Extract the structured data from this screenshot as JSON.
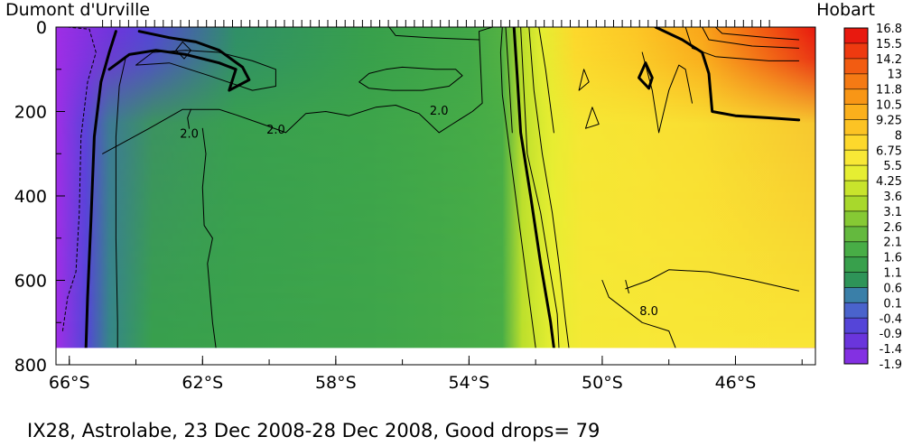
{
  "chart_data": {
    "type": "heatmap",
    "top_left_label": "Dumont d'Urville",
    "top_right_label": "Hobart",
    "caption": "IX28, Astrolabe, 23 Dec 2008-28 Dec 2008, Good drops= 79",
    "x_range": [
      66.4,
      43.6
    ],
    "y_range": [
      0,
      800
    ],
    "data_depth_max": 760,
    "x_ticks": [
      {
        "value": 66,
        "label": "66°S"
      },
      {
        "value": 62,
        "label": "62°S"
      },
      {
        "value": 58,
        "label": "58°S"
      },
      {
        "value": 54,
        "label": "54°S"
      },
      {
        "value": 50,
        "label": "50°S"
      },
      {
        "value": 46,
        "label": "46°S"
      }
    ],
    "y_ticks": [
      {
        "value": 0,
        "label": "0"
      },
      {
        "value": 200,
        "label": "200"
      },
      {
        "value": 400,
        "label": "400"
      },
      {
        "value": 600,
        "label": "600"
      },
      {
        "value": 800,
        "label": "800"
      }
    ],
    "colorbar_labels": [
      "16.8",
      "15.5",
      "14.2",
      "13",
      "11.8",
      "10.5",
      "9.25",
      "8",
      "6.75",
      "5.5",
      "4.25",
      "3.6",
      "3.1",
      "2.6",
      "2.1",
      "1.6",
      "1.1",
      "0.6",
      "0.1",
      "-0.4",
      "-0.9",
      "-1.4",
      "-1.9"
    ],
    "colorbar_colors": [
      "#e8190f",
      "#ee3a10",
      "#f25c12",
      "#f57a14",
      "#f89616",
      "#fbb01c",
      "#fcc324",
      "#fdd82c",
      "#f8e836",
      "#e6ee32",
      "#c8e42c",
      "#a8d82c",
      "#86c934",
      "#64b93e",
      "#48ad46",
      "#38a04c",
      "#2e9458",
      "#3a7fa8",
      "#4a63cc",
      "#5545d8",
      "#6a35dc",
      "#8330e2",
      "#a02ee6"
    ],
    "surface_temperature": [
      {
        "lat": 66.4,
        "t": -1.9
      },
      {
        "lat": 64.7,
        "t": -1.0
      },
      {
        "lat": 63.6,
        "t": -0.4
      },
      {
        "lat": 61.0,
        "t": 1.0
      },
      {
        "lat": 57.0,
        "t": 1.6
      },
      {
        "lat": 54.0,
        "t": 1.9
      },
      {
        "lat": 53.0,
        "t": 2.3
      },
      {
        "lat": 52.4,
        "t": 4.0
      },
      {
        "lat": 51.8,
        "t": 5.5
      },
      {
        "lat": 50.8,
        "t": 8.0
      },
      {
        "lat": 49.0,
        "t": 9.0
      },
      {
        "lat": 47.0,
        "t": 11.0
      },
      {
        "lat": 45.0,
        "t": 14.5
      },
      {
        "lat": 43.6,
        "t": 16.8
      }
    ],
    "deep_temperature": [
      {
        "lat": 66.4,
        "t": -1.9
      },
      {
        "lat": 65.5,
        "t": -0.4
      },
      {
        "lat": 64.8,
        "t": 0.8
      },
      {
        "lat": 63.5,
        "t": 1.6
      },
      {
        "lat": 57.0,
        "t": 1.8
      },
      {
        "lat": 53.0,
        "t": 2.1
      },
      {
        "lat": 52.4,
        "t": 4.0
      },
      {
        "lat": 51.5,
        "t": 5.5
      },
      {
        "lat": 50.6,
        "t": 6.5
      },
      {
        "lat": 48.0,
        "t": 6.8
      },
      {
        "lat": 43.6,
        "t": 6.9
      }
    ],
    "contours": [
      {
        "weight": "thin",
        "dashed": true,
        "points": [
          [
            66.05,
            0
          ],
          [
            65.4,
            5
          ],
          [
            65.2,
            60
          ],
          [
            65.45,
            130
          ],
          [
            65.65,
            260
          ],
          [
            65.7,
            440
          ],
          [
            65.8,
            580
          ],
          [
            66.05,
            640
          ],
          [
            66.2,
            720
          ]
        ]
      },
      {
        "weight": "thick",
        "points": [
          [
            64.6,
            10
          ],
          [
            64.8,
            60
          ],
          [
            65.05,
            130
          ],
          [
            65.25,
            260
          ],
          [
            65.35,
            460
          ],
          [
            65.45,
            640
          ],
          [
            65.5,
            760
          ]
        ]
      },
      {
        "weight": "thin",
        "points": [
          [
            64.3,
            70
          ],
          [
            64.5,
            140
          ],
          [
            64.6,
            260
          ],
          [
            64.6,
            500
          ],
          [
            64.55,
            700
          ],
          [
            64.55,
            760
          ]
        ]
      },
      {
        "weight": "thick",
        "points": [
          [
            63.9,
            10
          ],
          [
            63.0,
            25
          ],
          [
            62.2,
            35
          ],
          [
            61.5,
            55
          ],
          [
            60.8,
            95
          ],
          [
            60.6,
            125
          ],
          [
            61.2,
            150
          ],
          [
            61.0,
            100
          ],
          [
            61.5,
            85
          ],
          [
            62.5,
            65
          ],
          [
            63.4,
            55
          ],
          [
            64.2,
            65
          ],
          [
            64.8,
            100
          ]
        ]
      },
      {
        "weight": "thin",
        "points": [
          [
            62.6,
            35
          ],
          [
            62.35,
            55
          ],
          [
            62.55,
            75
          ],
          [
            62.8,
            55
          ],
          [
            62.6,
            35
          ]
        ]
      },
      {
        "weight": "thin",
        "points": [
          [
            64.0,
            90
          ],
          [
            63.0,
            85
          ],
          [
            61.8,
            115
          ],
          [
            60.5,
            150
          ],
          [
            59.8,
            140
          ],
          [
            59.8,
            100
          ],
          [
            60.5,
            80
          ],
          [
            61.5,
            60
          ],
          [
            62.5,
            55
          ],
          [
            63.5,
            60
          ],
          [
            64.0,
            90
          ]
        ]
      },
      {
        "weight": "thin",
        "points": [
          [
            56.5,
            100
          ],
          [
            56.0,
            95
          ],
          [
            55.0,
            100
          ],
          [
            54.4,
            100
          ],
          [
            54.2,
            115
          ],
          [
            54.6,
            140
          ],
          [
            55.4,
            150
          ],
          [
            56.3,
            150
          ],
          [
            57.0,
            145
          ],
          [
            57.3,
            130
          ],
          [
            57.0,
            110
          ],
          [
            56.5,
            100
          ]
        ]
      },
      {
        "weight": "thin",
        "points": [
          [
            62.35,
            195
          ],
          [
            62.45,
            215
          ],
          [
            62.4,
            240
          ]
        ]
      },
      {
        "weight": "thin",
        "points": [
          [
            62.0,
            240
          ],
          [
            61.9,
            300
          ],
          [
            62.0,
            380
          ],
          [
            61.95,
            470
          ],
          [
            61.7,
            500
          ],
          [
            61.85,
            560
          ],
          [
            61.7,
            700
          ],
          [
            61.6,
            760
          ]
        ]
      },
      {
        "weight": "thin",
        "points": [
          [
            65.0,
            300
          ],
          [
            63.6,
            240
          ],
          [
            62.6,
            195
          ],
          [
            62.0,
            195
          ],
          [
            61.5,
            195
          ],
          [
            61.0,
            208
          ],
          [
            60.2,
            230
          ],
          [
            59.5,
            250
          ],
          [
            58.9,
            205
          ],
          [
            58.3,
            200
          ],
          [
            57.6,
            210
          ],
          [
            56.8,
            190
          ],
          [
            56.2,
            185
          ],
          [
            55.5,
            205
          ],
          [
            54.9,
            250
          ],
          [
            54.5,
            230
          ],
          [
            53.9,
            200
          ],
          [
            53.6,
            180
          ],
          [
            53.7,
            10
          ],
          [
            53.3,
            0
          ]
        ]
      },
      {
        "weight": "thin",
        "points": [
          [
            56.4,
            0
          ],
          [
            56.2,
            20
          ],
          [
            55.2,
            25
          ],
          [
            54.3,
            28
          ],
          [
            53.7,
            30
          ]
        ]
      },
      {
        "weight": "thin",
        "points": [
          [
            53.0,
            0
          ],
          [
            53.05,
            60
          ],
          [
            53.0,
            160
          ],
          [
            52.85,
            250
          ],
          [
            52.6,
            400
          ],
          [
            52.35,
            550
          ],
          [
            52.1,
            700
          ],
          [
            52.0,
            760
          ]
        ]
      },
      {
        "weight": "thin",
        "points": [
          [
            52.9,
            0
          ],
          [
            52.8,
            120
          ],
          [
            52.7,
            250
          ]
        ]
      },
      {
        "weight": "thick",
        "points": [
          [
            52.65,
            0
          ],
          [
            52.55,
            120
          ],
          [
            52.45,
            250
          ],
          [
            52.15,
            400
          ],
          [
            51.85,
            560
          ],
          [
            51.55,
            700
          ],
          [
            51.45,
            760
          ]
        ]
      },
      {
        "weight": "thin",
        "points": [
          [
            52.45,
            0
          ],
          [
            52.35,
            150
          ],
          [
            52.25,
            300
          ],
          [
            51.85,
            440
          ],
          [
            51.6,
            560
          ],
          [
            51.35,
            680
          ],
          [
            51.3,
            760
          ]
        ]
      },
      {
        "weight": "thin",
        "points": [
          [
            52.2,
            0
          ],
          [
            52.05,
            150
          ],
          [
            51.8,
            300
          ],
          [
            51.5,
            440
          ],
          [
            51.3,
            560
          ],
          [
            51.1,
            700
          ],
          [
            51.0,
            760
          ]
        ]
      },
      {
        "weight": "thin",
        "points": [
          [
            51.9,
            0
          ],
          [
            51.7,
            100
          ],
          [
            51.45,
            250
          ]
        ]
      },
      {
        "weight": "thin",
        "points": [
          [
            50.55,
            100
          ],
          [
            50.4,
            130
          ],
          [
            50.7,
            150
          ],
          [
            50.55,
            100
          ]
        ]
      },
      {
        "weight": "thin",
        "points": [
          [
            50.3,
            190
          ],
          [
            50.1,
            230
          ],
          [
            50.5,
            240
          ],
          [
            50.3,
            190
          ]
        ]
      },
      {
        "weight": "thin",
        "points": [
          [
            48.8,
            60
          ],
          [
            48.5,
            150
          ],
          [
            48.3,
            250
          ],
          [
            48.0,
            150
          ],
          [
            47.7,
            90
          ],
          [
            47.5,
            100
          ],
          [
            47.3,
            180
          ]
        ]
      },
      {
        "weight": "thick",
        "points": [
          [
            48.7,
            85
          ],
          [
            48.5,
            120
          ],
          [
            48.6,
            145
          ],
          [
            48.9,
            120
          ],
          [
            48.7,
            85
          ]
        ]
      },
      {
        "weight": "thick",
        "points": [
          [
            48.4,
            0
          ],
          [
            47.6,
            30
          ],
          [
            47.0,
            60
          ],
          [
            46.8,
            110
          ],
          [
            46.7,
            200
          ],
          [
            46.0,
            210
          ],
          [
            45.0,
            215
          ],
          [
            44.1,
            220
          ]
        ]
      },
      {
        "weight": "thin",
        "points": [
          [
            47.5,
            0
          ],
          [
            47.3,
            50
          ],
          [
            46.6,
            70
          ],
          [
            45.0,
            80
          ],
          [
            44.1,
            80
          ]
        ]
      },
      {
        "weight": "thin",
        "points": [
          [
            47.0,
            0
          ],
          [
            46.8,
            30
          ],
          [
            45.5,
            45
          ],
          [
            44.1,
            50
          ]
        ]
      },
      {
        "weight": "thin",
        "points": [
          [
            46.6,
            0
          ],
          [
            46.4,
            15
          ],
          [
            45.0,
            25
          ],
          [
            44.1,
            30
          ]
        ]
      },
      {
        "weight": "thin",
        "points": [
          [
            49.3,
            620
          ],
          [
            48.6,
            600
          ],
          [
            48.0,
            575
          ],
          [
            46.8,
            580
          ],
          [
            45.5,
            600
          ],
          [
            44.1,
            625
          ]
        ]
      },
      {
        "weight": "thin",
        "points": [
          [
            50.0,
            600
          ],
          [
            49.8,
            640
          ],
          [
            48.8,
            700
          ],
          [
            48.0,
            720
          ],
          [
            47.8,
            760
          ]
        ]
      },
      {
        "weight": "thin",
        "points": [
          [
            49.3,
            600
          ],
          [
            49.2,
            630
          ]
        ]
      }
    ],
    "contour_labels": [
      {
        "text": "2.0",
        "lat": 62.4,
        "depth": 255
      },
      {
        "text": "2.0",
        "lat": 59.8,
        "depth": 245
      },
      {
        "text": "2.0",
        "lat": 54.9,
        "depth": 200
      },
      {
        "text": "8.0",
        "lat": 48.6,
        "depth": 675
      }
    ]
  }
}
